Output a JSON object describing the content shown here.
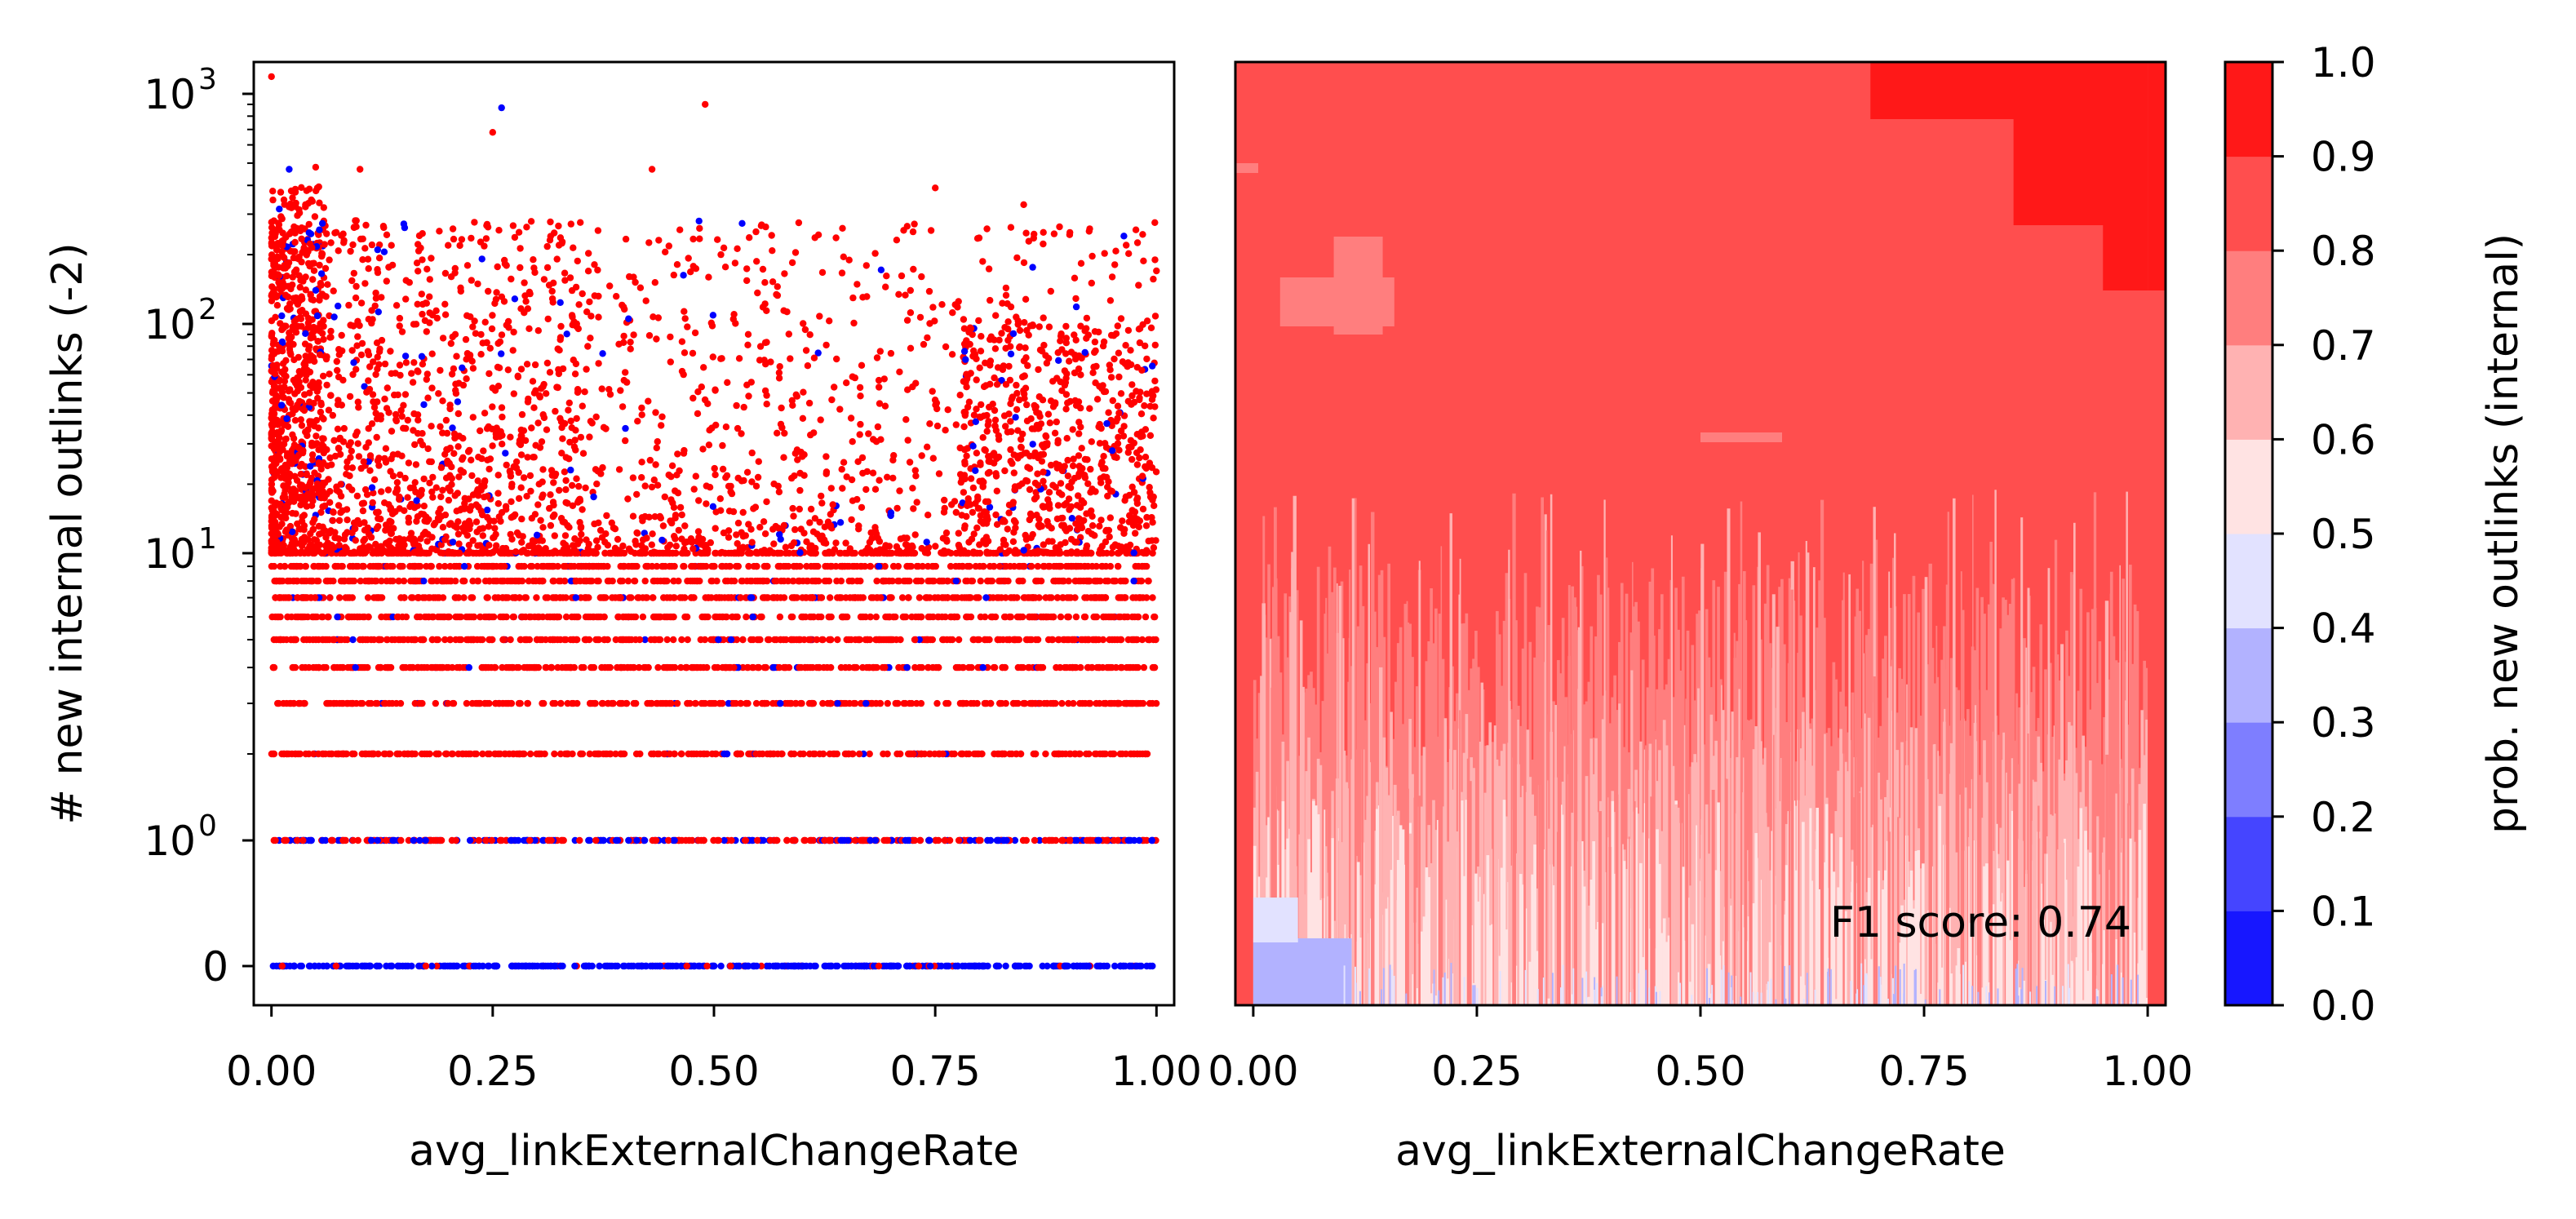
{
  "chart_data": [
    {
      "type": "scatter",
      "xlabel": "avg_linkExternalChangeRate",
      "ylabel": "# new internal outlinks (-2)",
      "x_ticks": [
        "0.00",
        "0.25",
        "0.50",
        "0.75",
        "1.00"
      ],
      "x_tick_values": [
        0,
        0.25,
        0.5,
        0.75,
        1.0
      ],
      "y_tick_values": [
        0,
        1,
        10,
        100,
        1000
      ],
      "y_tick_labels": [
        {
          "base": "0",
          "exp": ""
        },
        {
          "base": "10",
          "exp": "0"
        },
        {
          "base": "10",
          "exp": "1"
        },
        {
          "base": "10",
          "exp": "2"
        },
        {
          "base": "10",
          "exp": "3"
        }
      ],
      "yscale": "symlog",
      "xlim": [
        -0.02,
        1.02
      ],
      "ylim": [
        -0.25,
        1400
      ],
      "discrete_y_levels": [
        0,
        1,
        2,
        3,
        4,
        5,
        6,
        7,
        8,
        9,
        10
      ],
      "series": [
        {
          "color": "#ff0000",
          "description_points": [
            [
              0.0,
              1200
            ],
            [
              0.25,
              680
            ],
            [
              0.49,
              900
            ],
            [
              0.43,
              470
            ],
            [
              0.75,
              390
            ],
            [
              0.85,
              330
            ],
            [
              0.95,
              160
            ],
            [
              1.0,
              170
            ],
            [
              0.05,
              480
            ],
            [
              0.1,
              470
            ]
          ]
        },
        {
          "color": "#0000ff",
          "description_points": [
            [
              0.26,
              870
            ],
            [
              0.02,
              470
            ],
            [
              0.12,
              210
            ],
            [
              0.05,
              140
            ],
            [
              0.4,
              35
            ],
            [
              0.95,
              28
            ],
            [
              0.3,
              12
            ],
            [
              0.7,
              15
            ]
          ]
        }
      ]
    },
    {
      "type": "heatmap",
      "xlabel": "avg_linkExternalChangeRate",
      "x_ticks": [
        "0.00",
        "0.25",
        "0.50",
        "0.75",
        "1.00"
      ],
      "x_tick_values": [
        0,
        0.25,
        0.5,
        0.75,
        1.0
      ],
      "xlim": [
        -0.02,
        1.02
      ],
      "annotation": "F1 score: 0.74",
      "colorbar": {
        "label": "prob. new outlinks (internal)",
        "ticks": [
          "0.0",
          "0.1",
          "0.2",
          "0.3",
          "0.4",
          "0.5",
          "0.6",
          "0.7",
          "0.8",
          "0.9",
          "1.0"
        ],
        "levels": [
          0,
          0.1,
          0.2,
          0.3,
          0.4,
          0.5,
          0.6,
          0.7,
          0.8,
          0.9,
          1.0
        ],
        "colors": [
          "#1717ff",
          "#4545ff",
          "#7e7eff",
          "#b2b2ff",
          "#e2e2ff",
          "#ffe3e3",
          "#ffb2b2",
          "#ff7e7e",
          "#ff4e4e",
          "#ff1818"
        ]
      },
      "regions": [
        {
          "y_range": "top",
          "x_range": [
            0.7,
            1.0
          ],
          "level": "0.9-1.0"
        },
        {
          "y_range": "upper",
          "x_range": [
            0.0,
            1.0
          ],
          "level": "0.8-0.9"
        },
        {
          "y_range": "lower",
          "x_range": [
            0.0,
            1.0
          ],
          "level": "0.6-0.8"
        },
        {
          "y_range": "bottom",
          "x_range": [
            0.0,
            0.12
          ],
          "level": "0.3-0.4"
        }
      ]
    }
  ]
}
